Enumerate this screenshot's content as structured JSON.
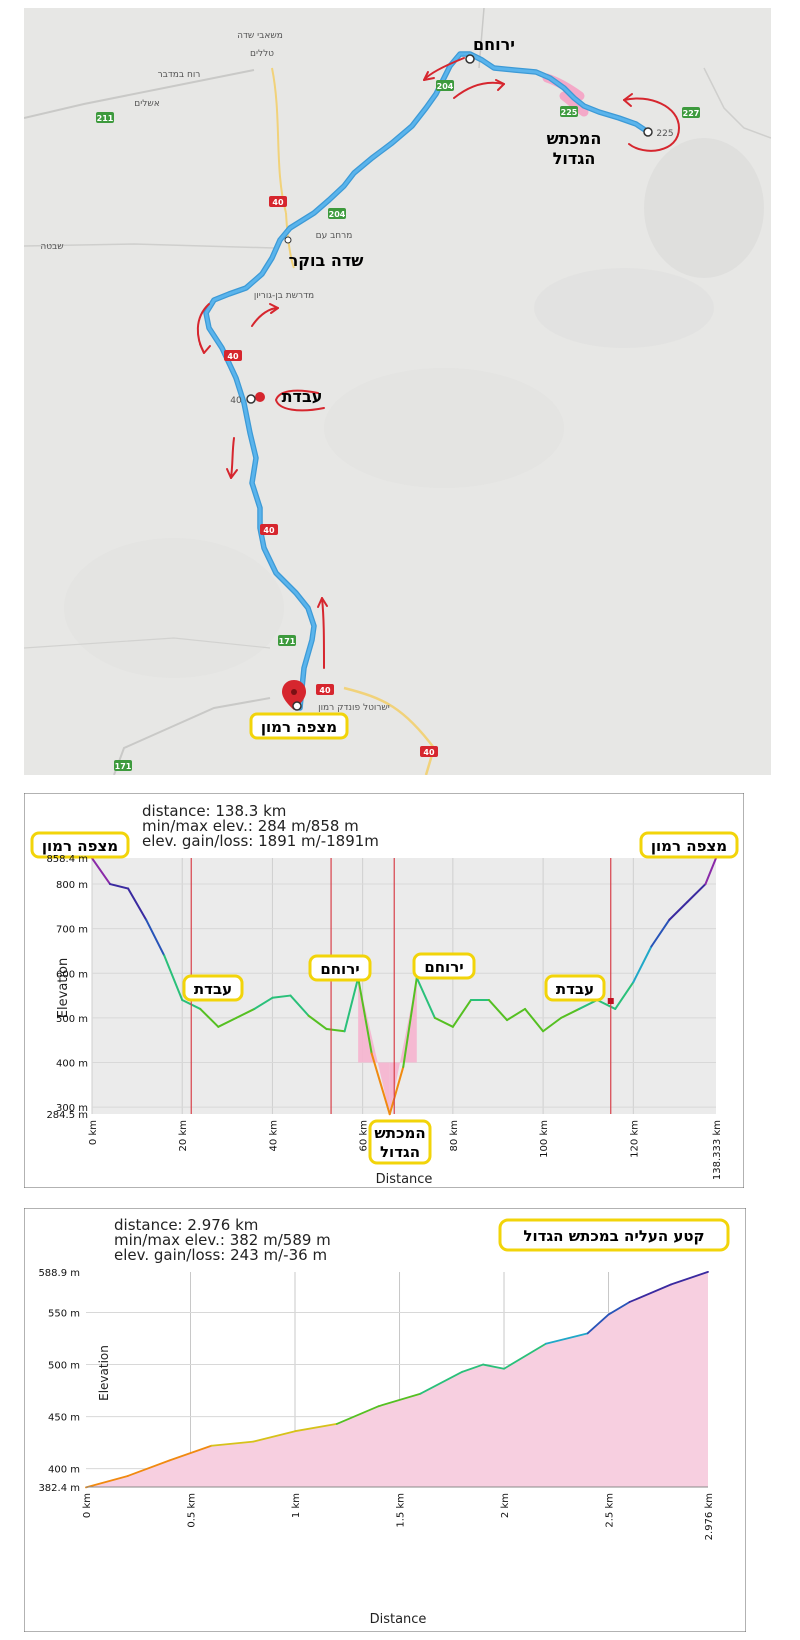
{
  "map": {
    "labels": {
      "yeruham": "ירוחם",
      "makhtesh": "המכתש הגדול",
      "makhtesh_l1": "המכתש",
      "makhtesh_l2": "הגדול",
      "sde_boker": "שדה בוקר",
      "avdat": "עבדת",
      "mitzpe": "מצפה רמון",
      "mashabei_sade": "משאבי שדה",
      "telalim": "טללים",
      "ruach_bamidbar": "רוח במדבר",
      "ashalim": "אשלים",
      "shivta": "שבטה",
      "merhav_am": "מרחב עם",
      "midreshet": "מדרשת בן-גוריון",
      "isrotel": "ישרוטל פונדק רמון",
      "road_225_end": "225",
      "road_40_marker": "40"
    },
    "road_shields": [
      "211",
      "204",
      "204",
      "225",
      "227",
      "40",
      "40",
      "40",
      "40",
      "171",
      "40",
      "40",
      "171"
    ]
  },
  "profile1": {
    "stats": {
      "distance": "distance: 138.3 km",
      "minmax": "min/max elev.: 284 m/858 m",
      "gain": "elev. gain/loss: 1891 m/-1891m"
    },
    "callouts": [
      "מצפה רמון",
      "מצפה רמון",
      "עבדת",
      "ירוחם",
      "ירוחם",
      "עבדת"
    ],
    "makhtesh_l1": "המכתש",
    "makhtesh_l2": "הגדול",
    "ylabel": "Elevation",
    "xlabel": "Distance",
    "yticks": [
      "858.4 m",
      "800 m",
      "700 m",
      "600 m",
      "500 m",
      "400 m",
      "300 m",
      "284.5 m"
    ],
    "xticks": [
      "0 km",
      "20 km",
      "40 km",
      "60 km",
      "80 km",
      "100 km",
      "120 km",
      "138.333 km"
    ]
  },
  "profile2": {
    "stats": {
      "distance": "distance: 2.976 km",
      "minmax": "min/max elev.: 382 m/589 m",
      "gain": "elev. gain/loss: 243 m/-36 m"
    },
    "title_box": "קטע העליה במכתש הגדול",
    "ylabel": "Elevation",
    "xlabel": "Distance",
    "yticks": [
      "588.9 m",
      "550 m",
      "500 m",
      "450 m",
      "400 m",
      "382.4 m"
    ],
    "xticks": [
      "0 km",
      "0.5 km",
      "1 km",
      "1.5 km",
      "2 km",
      "2.5 km",
      "2.976 km"
    ]
  },
  "chart_data": [
    {
      "type": "line",
      "ylabel": "Elevation",
      "xlabel": "Distance",
      "xlim": [
        0,
        138.333
      ],
      "ylim": [
        284.5,
        858.4
      ],
      "x": [
        0,
        4,
        8,
        12,
        16,
        20,
        24,
        28,
        32,
        36,
        40,
        44,
        48,
        52,
        56,
        59,
        62,
        66,
        69,
        72,
        76,
        80,
        84,
        88,
        92,
        96,
        100,
        104,
        108,
        112,
        116,
        120,
        124,
        128,
        132,
        136,
        138.333
      ],
      "y": [
        858,
        800,
        790,
        720,
        640,
        540,
        520,
        480,
        500,
        520,
        545,
        550,
        505,
        475,
        470,
        590,
        420,
        284,
        390,
        590,
        500,
        480,
        540,
        540,
        495,
        520,
        470,
        500,
        520,
        540,
        520,
        580,
        660,
        720,
        760,
        800,
        858
      ]
    },
    {
      "type": "area",
      "ylabel": "Elevation",
      "xlabel": "Distance",
      "xlim": [
        0,
        2.976
      ],
      "ylim": [
        382.4,
        588.9
      ],
      "x": [
        0,
        0.2,
        0.4,
        0.6,
        0.8,
        1.0,
        1.2,
        1.4,
        1.6,
        1.8,
        1.9,
        2.0,
        2.2,
        2.4,
        2.5,
        2.6,
        2.8,
        2.976
      ],
      "y": [
        382,
        393,
        408,
        422,
        426,
        436,
        443,
        460,
        472,
        493,
        500,
        496,
        520,
        530,
        548,
        560,
        577,
        589
      ]
    }
  ]
}
